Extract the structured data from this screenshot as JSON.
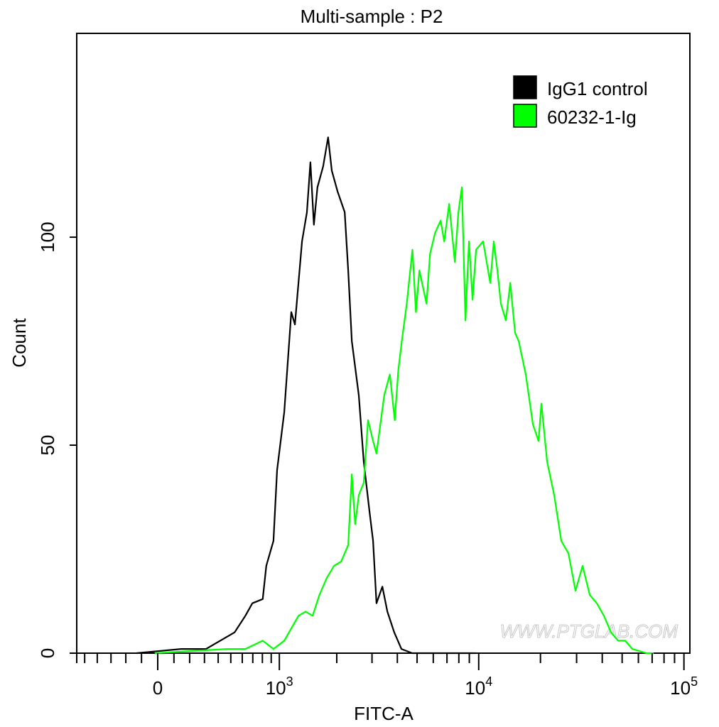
{
  "chart_data": {
    "type": "line",
    "title": "Multi-sample : P2",
    "xlabel": "FITC-A",
    "ylabel": "Count",
    "x_scale": "biexponential",
    "xlim": [
      -570,
      100000
    ],
    "ylim": [
      0,
      149
    ],
    "grid": false,
    "legend_placement": "top-right",
    "watermark": "WWW.PTGLAB.COM",
    "x_major_ticks": [
      {
        "value": 0,
        "base": "0",
        "exp": ""
      },
      {
        "value": 1000,
        "base": "10",
        "exp": "3"
      },
      {
        "value": 10000,
        "base": "10",
        "exp": "4"
      },
      {
        "value": 100000,
        "base": "10",
        "exp": "5"
      }
    ],
    "y_ticks": [
      {
        "value": 0,
        "label": "0"
      },
      {
        "value": 50,
        "label": "50"
      },
      {
        "value": 100,
        "label": "100"
      }
    ],
    "series": [
      {
        "name": "IgG1 control",
        "color": "#000000",
        "x": [
          -132,
          146,
          311,
          416,
          532,
          629,
          696,
          804,
          843,
          927,
          971,
          1064,
          1162,
          1215,
          1325,
          1406,
          1467,
          1529,
          1594,
          1705,
          1808,
          1888,
          2018,
          2193,
          2284,
          2380,
          2580,
          2730,
          2916,
          3036,
          3156,
          3375,
          3572,
          3862,
          4190,
          4732,
          9709
        ],
        "y": [
          0,
          1,
          1,
          3,
          5,
          9,
          12,
          13,
          21,
          27,
          44,
          58,
          82,
          79,
          99,
          106,
          118,
          103,
          112,
          117,
          124,
          116,
          111,
          106,
          92,
          75,
          62,
          46,
          34,
          27,
          12,
          16,
          10,
          5,
          1,
          0,
          0
        ]
      },
      {
        "name": "60232-1-Ig",
        "color": "#00ff00",
        "x": [
          -18,
          472,
          629,
          804,
          927,
          1064,
          1270,
          1385,
          1505,
          1633,
          1777,
          1937,
          2103,
          2284,
          2380,
          2475,
          2580,
          2730,
          2867,
          3036,
          3156,
          3447,
          3675,
          3884,
          4042,
          4207,
          4448,
          4742,
          4932,
          5133,
          5561,
          5787,
          6120,
          6518,
          6783,
          7174,
          7646,
          7959,
          8279,
          8616,
          8968,
          9333,
          9712,
          10511,
          11386,
          11849,
          12335,
          12827,
          13566,
          14249,
          15043,
          15672,
          16957,
          18379,
          19583,
          20212,
          21552,
          23330,
          25271,
          27377,
          29620,
          32082,
          34762,
          37634,
          40751,
          44143,
          47780,
          51746,
          56068,
          65722,
          71192
        ],
        "y": [
          0,
          1,
          1,
          3,
          1,
          3,
          9,
          10,
          9,
          14,
          18,
          21,
          22,
          26,
          43,
          31,
          38,
          41,
          56,
          51,
          48,
          62,
          67,
          56,
          68,
          75,
          84,
          97,
          82,
          92,
          84,
          96,
          101,
          104,
          99,
          108,
          94,
          106,
          112,
          80,
          99,
          85,
          97,
          99,
          89,
          99,
          92,
          84,
          80,
          89,
          77,
          75,
          67,
          55,
          51,
          60,
          46,
          38,
          27,
          24,
          15,
          21,
          14,
          12,
          9,
          5,
          3,
          3,
          1,
          0,
          0
        ]
      }
    ]
  }
}
